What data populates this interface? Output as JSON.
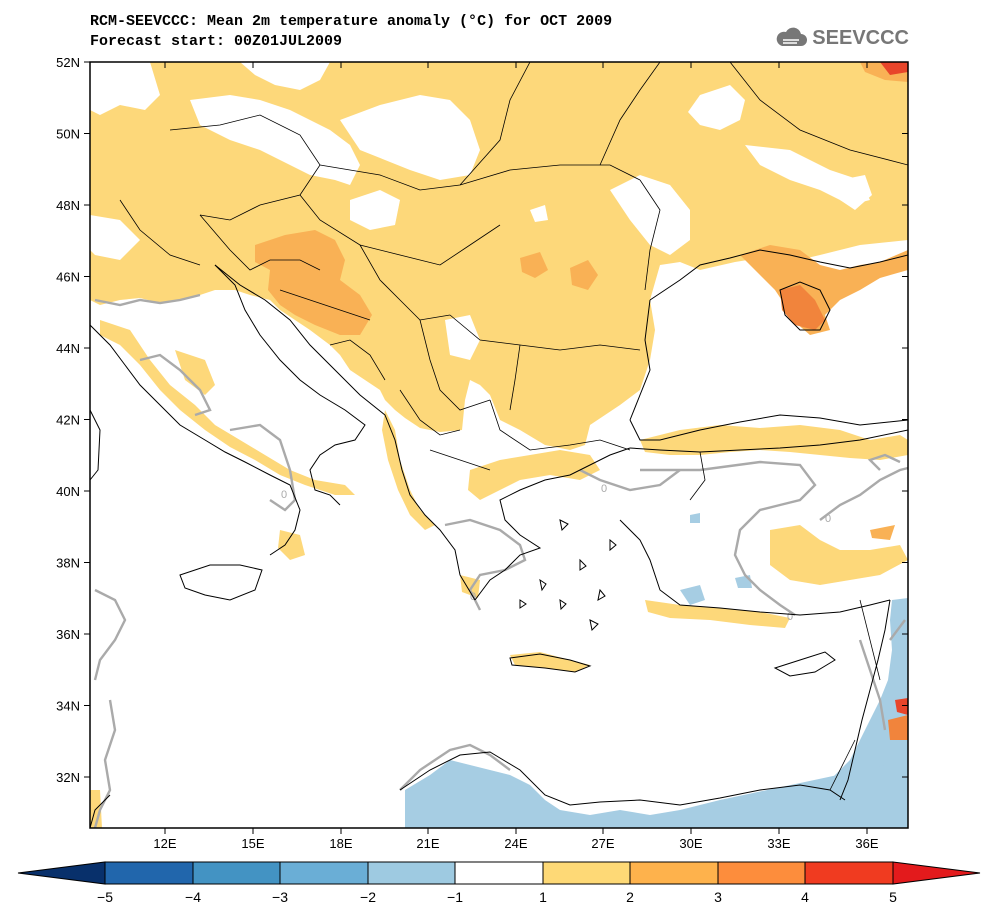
{
  "header": {
    "title_line1": "RCM-SEEVCCC: Mean 2m temperature anomaly (°C) for OCT 2009",
    "title_line2": "Forecast start: 00Z01JUL2009",
    "logo_text": "SEEVCCC"
  },
  "map": {
    "lon_range": [
      9.5,
      37.5
    ],
    "lat_range": [
      30.5,
      52
    ],
    "lon_ticks": [
      "12E",
      "15E",
      "18E",
      "21E",
      "24E",
      "27E",
      "30E",
      "33E",
      "36E"
    ],
    "lat_ticks": [
      "52N",
      "50N",
      "48N",
      "46N",
      "44N",
      "42N",
      "40N",
      "38N",
      "36N",
      "34N",
      "32N"
    ],
    "contour_label": "0"
  },
  "colorbar": {
    "labels": [
      "−5",
      "−4",
      "−3",
      "−2",
      "−1",
      "1",
      "2",
      "3",
      "4",
      "5"
    ],
    "colors": [
      "#08306b",
      "#2166ac",
      "#4393c3",
      "#6aaed6",
      "#9ecae1",
      "#ffffff",
      "#fed976",
      "#feb24c",
      "#fd8d3c",
      "#f03b20"
    ],
    "left_arrow_color": "#08306b",
    "right_arrow_color": "#e31a1c"
  },
  "colors": {
    "warm1": "#fdd87a",
    "warm2": "#f9b155",
    "warm3": "#f1843c",
    "warm4": "#e8452a",
    "cool1": "#a6cde3",
    "cool2": "#6aaed6",
    "contour_zero": "#aaaaaa"
  }
}
